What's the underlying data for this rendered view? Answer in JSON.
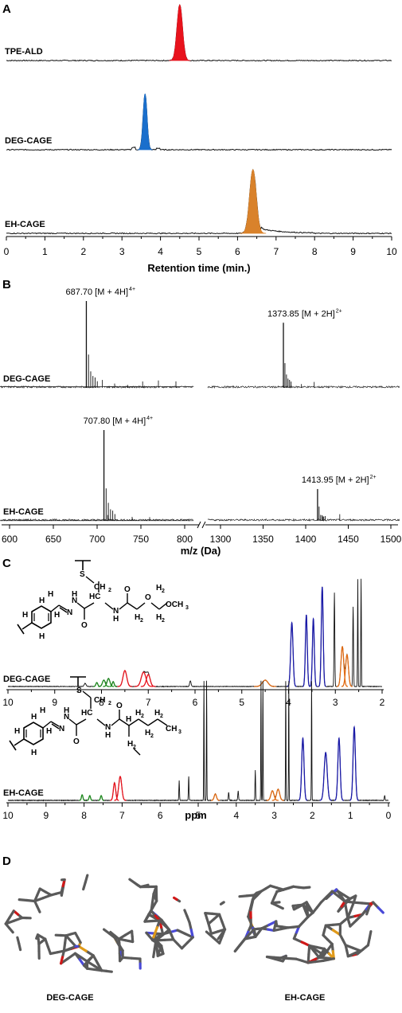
{
  "panels": {
    "a": "A",
    "b": "B",
    "c": "C",
    "d": "D"
  },
  "chart_data": [
    {
      "type": "line",
      "xlabel": "Retention time (min.)",
      "xlim": [
        0,
        10
      ],
      "xticks": [
        "0",
        "1",
        "2",
        "3",
        "4",
        "5",
        "6",
        "7",
        "8",
        "9",
        "10"
      ],
      "series": [
        {
          "name": "TPE-ALD",
          "peak_x": 4.5,
          "color": "#e8121c"
        },
        {
          "name": "DEG-CAGE",
          "peak_x": 3.6,
          "color": "#1a6fcc"
        },
        {
          "name": "EH-CAGE",
          "peak_x": 6.4,
          "color": "#d9822b"
        }
      ]
    },
    {
      "type": "bar",
      "xlabel": "m/z (Da)",
      "xticks_left": [
        "600",
        "650",
        "700",
        "750",
        "800"
      ],
      "xticks_right": [
        "1300",
        "1350",
        "1400",
        "1450",
        "1500"
      ],
      "series": [
        {
          "name": "DEG-CAGE",
          "peaks": [
            {
              "x": 687.7,
              "label": "687.70 [M + 4H]",
              "charge": "4+",
              "rel": 1.0
            },
            {
              "x": 1373.85,
              "label": "1373.85 [M + 2H]",
              "charge": "2+",
              "rel": 0.75
            }
          ]
        },
        {
          "name": "EH-CAGE",
          "peaks": [
            {
              "x": 707.8,
              "label": "707.80 [M + 4H]",
              "charge": "4+",
              "rel": 1.0
            },
            {
              "x": 1413.95,
              "label": "1413.95 [M + 2H]",
              "charge": "2+",
              "rel": 0.35
            }
          ]
        }
      ]
    },
    {
      "type": "line",
      "xlabel": "ppm",
      "series": [
        {
          "name": "DEG-CAGE",
          "xlim": [
            10,
            2
          ],
          "xticks": [
            "10",
            "9",
            "8",
            "7",
            "6",
            "5",
            "4",
            "3",
            "2"
          ]
        },
        {
          "name": "EH-CAGE",
          "xlim": [
            10,
            0
          ],
          "xticks": [
            "10",
            "9",
            "8",
            "7",
            "6",
            "5",
            "4",
            "3",
            "2",
            "1",
            "0"
          ]
        }
      ]
    }
  ],
  "structure": {
    "atom_h": "H",
    "atom_n": "N",
    "atom_o": "O",
    "atom_s": "S",
    "ch2": "CH",
    "hc": "HC",
    "och3": "OCH",
    "ch3": "CH",
    "sub2": "2",
    "sub3": "3"
  },
  "cages": {
    "left": "DEG-CAGE",
    "right": "EH-CAGE"
  }
}
